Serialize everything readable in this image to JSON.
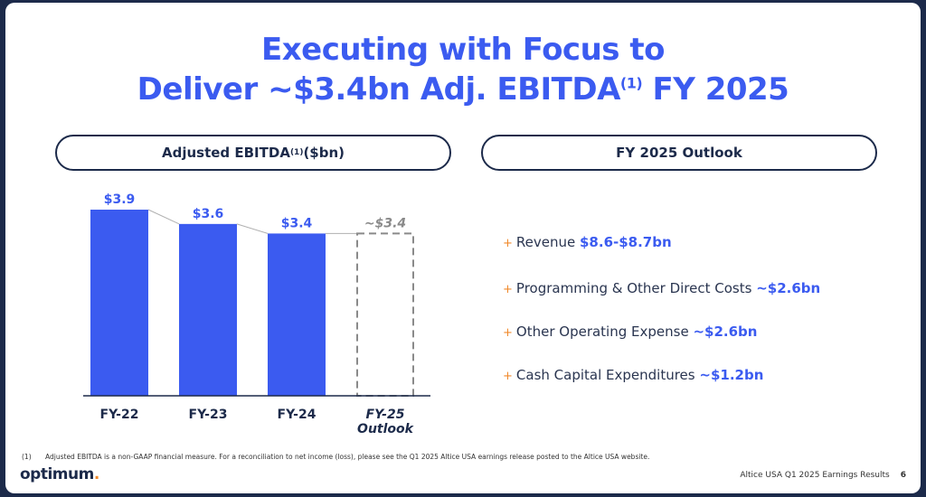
{
  "title": {
    "line1": "Executing with Focus to",
    "line2_pre": "Deliver ~$3.4bn Adj. EBITDA",
    "line2_sup": "(1)",
    "line2_post": " FY 2025"
  },
  "left_header": {
    "pre": "Adjusted EBITDA",
    "sup": "(1)",
    "post": " ($bn)"
  },
  "right_header": "FY 2025 Outlook",
  "chart_data": {
    "type": "bar",
    "categories": [
      "FY-22",
      "FY-23",
      "FY-24",
      "FY-25 Outlook"
    ],
    "category_lines": [
      [
        "FY-22"
      ],
      [
        "FY-23"
      ],
      [
        "FY-24"
      ],
      [
        "FY-25",
        "Outlook"
      ]
    ],
    "values": [
      3.9,
      3.6,
      3.4,
      3.4
    ],
    "value_labels": [
      "$3.9",
      "$3.6",
      "$3.4",
      "~$3.4"
    ],
    "outlook_flags": [
      false,
      false,
      false,
      true
    ],
    "title": "Adjusted EBITDA(1) ($bn)",
    "xlabel": "",
    "ylabel": "",
    "ylim": [
      0,
      3.9
    ],
    "colors": {
      "bar": "#3b5bf0",
      "outlook_border": "#8a8a8a",
      "connector": "#b0b0b0"
    }
  },
  "outlook": [
    {
      "label": "Revenue ",
      "value": "$8.6-$8.7bn"
    },
    {
      "label": "Programming & Other Direct Costs ",
      "value": "~$2.6bn"
    },
    {
      "label": "Other Operating Expense ",
      "value": "~$2.6bn"
    },
    {
      "label": "Cash Capital Expenditures ",
      "value": "~$1.2bn"
    }
  ],
  "bullet_glyph": "+",
  "footnote": {
    "num": "(1)",
    "text": "Adjusted EBITDA is a non-GAAP financial measure. For a reconciliation to net income (loss), please see the Q1 2025 Altice USA earnings release posted to the Altice USA website."
  },
  "logo": {
    "text": "optimum",
    "dot": "."
  },
  "footer": {
    "text": "Altice USA Q1 2025 Earnings Results",
    "page": "6"
  }
}
